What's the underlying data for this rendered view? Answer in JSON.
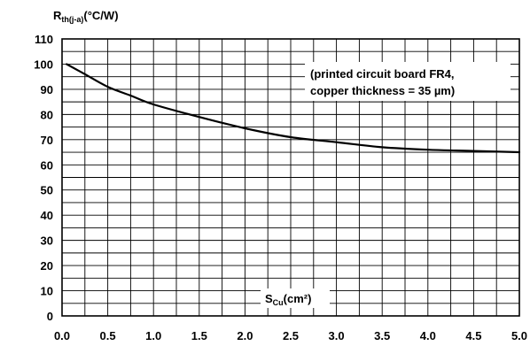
{
  "chart_data": {
    "type": "line",
    "ylabel_main": "R",
    "ylabel_sub": "th(j-a)",
    "ylabel_unit": "(°C/W)",
    "xlabel_main": "S",
    "xlabel_sub": "Cu",
    "xlabel_unit": "(cm²)",
    "annotation": [
      "(printed circuit board FR4,",
      "copper thickness = 35 µm)"
    ],
    "xlim": [
      0,
      5
    ],
    "ylim": [
      0,
      110
    ],
    "x_ticks": [
      "0.0",
      "0.5",
      "1.0",
      "1.5",
      "2.0",
      "2.5",
      "3.0",
      "3.5",
      "4.0",
      "4.5",
      "5.0"
    ],
    "y_ticks": [
      "0",
      "10",
      "20",
      "30",
      "40",
      "50",
      "60",
      "70",
      "80",
      "90",
      "100",
      "110"
    ],
    "x_tick_values": [
      0,
      0.5,
      1,
      1.5,
      2,
      2.5,
      3,
      3.5,
      4,
      4.5,
      5
    ],
    "y_tick_values": [
      0,
      10,
      20,
      30,
      40,
      50,
      60,
      70,
      80,
      90,
      100,
      110
    ],
    "x_minor_step": 0.25,
    "y_minor_step": 5,
    "grid": true,
    "series": [
      {
        "x": [
          0.05,
          0.25,
          0.5,
          0.75,
          1.0,
          1.5,
          2.0,
          2.5,
          3.0,
          3.5,
          4.0,
          4.5,
          5.0
        ],
        "values": [
          100,
          96,
          91,
          87.5,
          84,
          79,
          74.5,
          71,
          69,
          67,
          66,
          65.5,
          65
        ],
        "color": "#000000"
      }
    ]
  }
}
